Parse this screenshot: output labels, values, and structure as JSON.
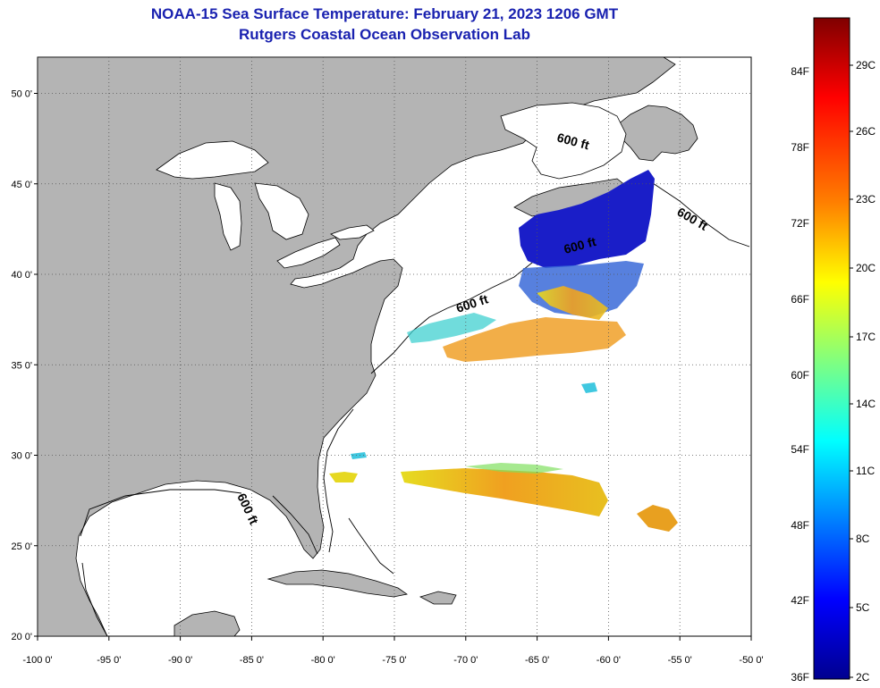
{
  "title": "NOAA-15 Sea Surface Temperature:  February 21, 2023 1206 GMT",
  "subtitle": "Rutgers Coastal Ocean Observation Lab",
  "map": {
    "lon_range": [
      -100,
      -50
    ],
    "lat_range": [
      20,
      52
    ],
    "lon_ticks": [
      "-100 0'",
      "-95 0'",
      "-90 0'",
      "-85 0'",
      "-80 0'",
      "-75 0'",
      "-70 0'",
      "-65 0'",
      "-60 0'",
      "-55 0'",
      "-50 0'"
    ],
    "lat_ticks": [
      "20 0'",
      "25 0'",
      "30 0'",
      "35 0'",
      "40 0'",
      "45 0'",
      "50 0'"
    ],
    "isobath_labels": [
      "600 ft",
      "600 ft",
      "600 ft",
      "600 ft",
      "600 ft"
    ],
    "colors": {
      "land": "#b4b4b4",
      "ocean": "#ffffff",
      "grid": "#555555"
    }
  },
  "colorbar": {
    "fahrenheit": [
      "84F",
      "78F",
      "72F",
      "66F",
      "60F",
      "54F",
      "48F",
      "42F",
      "36F"
    ],
    "celsius": [
      "29C",
      "26C",
      "23C",
      "20C",
      "17C",
      "14C",
      "11C",
      "8C",
      "5C",
      "2C"
    ],
    "gradient": [
      "#7f0000",
      "#ff0000",
      "#ff8000",
      "#ffff00",
      "#80ff80",
      "#00ffff",
      "#0080ff",
      "#0000ff",
      "#00008f"
    ]
  }
}
